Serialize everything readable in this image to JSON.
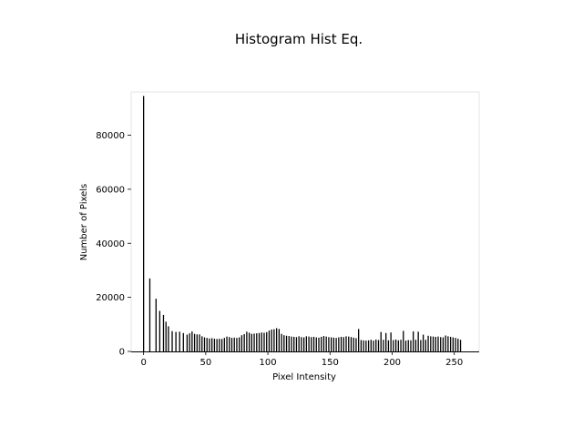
{
  "chart_data": {
    "type": "bar",
    "title": "Histogram Hist Eq.",
    "xlabel": "Pixel Intensity",
    "ylabel": "Number of Pixels",
    "xlim": [
      -10,
      270
    ],
    "ylim": [
      0,
      96000
    ],
    "xticks": [
      0,
      50,
      100,
      150,
      200,
      250
    ],
    "yticks": [
      0,
      20000,
      40000,
      60000,
      80000
    ],
    "grid": false,
    "legend": "none",
    "frame": "light-grey top/right/left, black bottom axis",
    "bar_color": "#000000",
    "bins": [
      [
        0,
        94500
      ],
      [
        5,
        27000
      ],
      [
        10,
        19500
      ],
      [
        13,
        15000
      ],
      [
        16,
        13500
      ],
      [
        18,
        11000
      ],
      [
        20,
        9300
      ],
      [
        23,
        7500
      ],
      [
        26,
        7200
      ],
      [
        29,
        7300
      ],
      [
        32,
        6800
      ],
      [
        35,
        6200
      ],
      [
        37,
        6700
      ],
      [
        39,
        7400
      ],
      [
        41,
        6500
      ],
      [
        43,
        6300
      ],
      [
        45,
        6300
      ],
      [
        47,
        5600
      ],
      [
        49,
        5200
      ],
      [
        51,
        5000
      ],
      [
        53,
        4800
      ],
      [
        55,
        4900
      ],
      [
        57,
        4700
      ],
      [
        59,
        4600
      ],
      [
        61,
        4700
      ],
      [
        63,
        4600
      ],
      [
        65,
        5000
      ],
      [
        67,
        5500
      ],
      [
        69,
        5300
      ],
      [
        71,
        5000
      ],
      [
        73,
        5100
      ],
      [
        75,
        5000
      ],
      [
        77,
        5200
      ],
      [
        79,
        6000
      ],
      [
        81,
        6400
      ],
      [
        83,
        7300
      ],
      [
        85,
        6900
      ],
      [
        87,
        6500
      ],
      [
        89,
        6600
      ],
      [
        91,
        6700
      ],
      [
        93,
        6800
      ],
      [
        95,
        7000
      ],
      [
        97,
        6900
      ],
      [
        99,
        7100
      ],
      [
        101,
        7700
      ],
      [
        103,
        8100
      ],
      [
        105,
        8200
      ],
      [
        107,
        8600
      ],
      [
        109,
        8300
      ],
      [
        111,
        6500
      ],
      [
        113,
        6000
      ],
      [
        115,
        5800
      ],
      [
        117,
        5700
      ],
      [
        119,
        5500
      ],
      [
        121,
        5400
      ],
      [
        123,
        5300
      ],
      [
        125,
        5600
      ],
      [
        127,
        5300
      ],
      [
        129,
        5200
      ],
      [
        131,
        5600
      ],
      [
        133,
        5500
      ],
      [
        135,
        5300
      ],
      [
        137,
        5400
      ],
      [
        139,
        5200
      ],
      [
        141,
        5100
      ],
      [
        143,
        5400
      ],
      [
        145,
        5700
      ],
      [
        147,
        5500
      ],
      [
        149,
        5300
      ],
      [
        151,
        5200
      ],
      [
        153,
        5100
      ],
      [
        155,
        5000
      ],
      [
        157,
        5200
      ],
      [
        159,
        5400
      ],
      [
        161,
        5300
      ],
      [
        163,
        5600
      ],
      [
        165,
        5500
      ],
      [
        167,
        5300
      ],
      [
        169,
        5100
      ],
      [
        171,
        4900
      ],
      [
        173,
        8300
      ],
      [
        175,
        4200
      ],
      [
        177,
        4100
      ],
      [
        179,
        4000
      ],
      [
        181,
        4100
      ],
      [
        183,
        4300
      ],
      [
        185,
        4000
      ],
      [
        187,
        4400
      ],
      [
        189,
        4200
      ],
      [
        191,
        7200
      ],
      [
        193,
        4300
      ],
      [
        195,
        6800
      ],
      [
        197,
        4100
      ],
      [
        199,
        7000
      ],
      [
        201,
        4200
      ],
      [
        203,
        4400
      ],
      [
        205,
        4100
      ],
      [
        207,
        4300
      ],
      [
        209,
        7600
      ],
      [
        211,
        4000
      ],
      [
        213,
        4200
      ],
      [
        215,
        4100
      ],
      [
        217,
        7400
      ],
      [
        219,
        4300
      ],
      [
        221,
        7300
      ],
      [
        223,
        4200
      ],
      [
        225,
        6200
      ],
      [
        227,
        4300
      ],
      [
        229,
        5800
      ],
      [
        231,
        5600
      ],
      [
        233,
        5500
      ],
      [
        235,
        5400
      ],
      [
        237,
        5500
      ],
      [
        239,
        5300
      ],
      [
        241,
        5200
      ],
      [
        243,
        5900
      ],
      [
        245,
        5600
      ],
      [
        247,
        5400
      ],
      [
        249,
        5200
      ],
      [
        251,
        5000
      ],
      [
        253,
        4700
      ],
      [
        255,
        4300
      ]
    ]
  }
}
